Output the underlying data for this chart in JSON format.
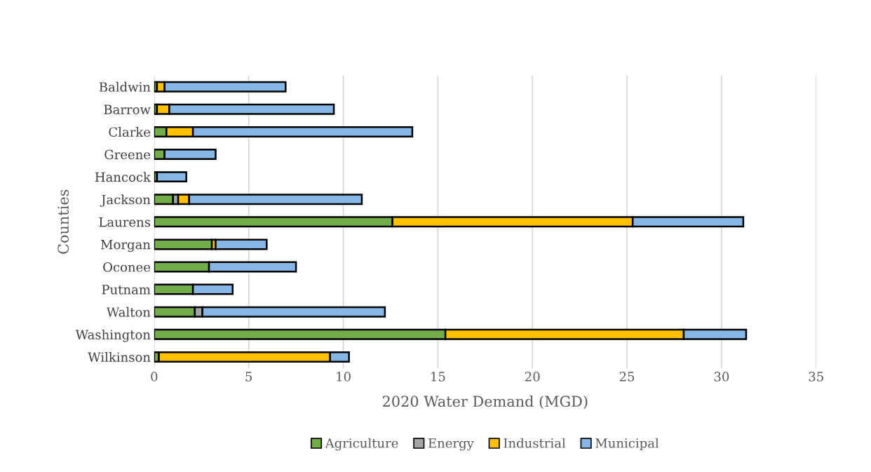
{
  "chart_data": {
    "type": "bar",
    "orientation": "horizontal",
    "stacked": true,
    "categories": [
      "Baldwin",
      "Barrow",
      "Clarke",
      "Greene",
      "Hancock",
      "Jackson",
      "Laurens",
      "Morgan",
      "Oconee",
      "Putnam",
      "Walton",
      "Washington",
      "Wilkinson"
    ],
    "series": [
      {
        "name": "Agriculture",
        "color": "#70ad47",
        "values": [
          0.15,
          0.15,
          0.65,
          0.55,
          0.15,
          1.0,
          12.6,
          3.05,
          2.9,
          2.05,
          2.15,
          15.4,
          0.25
        ]
      },
      {
        "name": "Energy",
        "color": "#a5a5a5",
        "values": [
          null,
          null,
          null,
          null,
          null,
          0.27,
          null,
          null,
          null,
          null,
          0.4,
          null,
          null
        ]
      },
      {
        "name": "Industrial",
        "color": "#ffc000",
        "values": [
          0.4,
          0.65,
          1.4,
          null,
          null,
          0.58,
          12.7,
          0.2,
          null,
          null,
          null,
          12.6,
          9.05
        ]
      },
      {
        "name": "Municipal",
        "color": "#85b6e6",
        "values": [
          6.4,
          8.7,
          11.6,
          2.7,
          1.55,
          9.13,
          5.85,
          2.7,
          4.6,
          2.1,
          9.65,
          3.3,
          1.0
        ]
      }
    ],
    "xlim": [
      0,
      35
    ],
    "xticks": [
      0,
      5,
      10,
      15,
      20,
      25,
      30,
      35
    ],
    "xlabel": "2020 Water Demand (MGD)",
    "ylabel": "Counties",
    "grid": "x",
    "legend": "bottom"
  }
}
